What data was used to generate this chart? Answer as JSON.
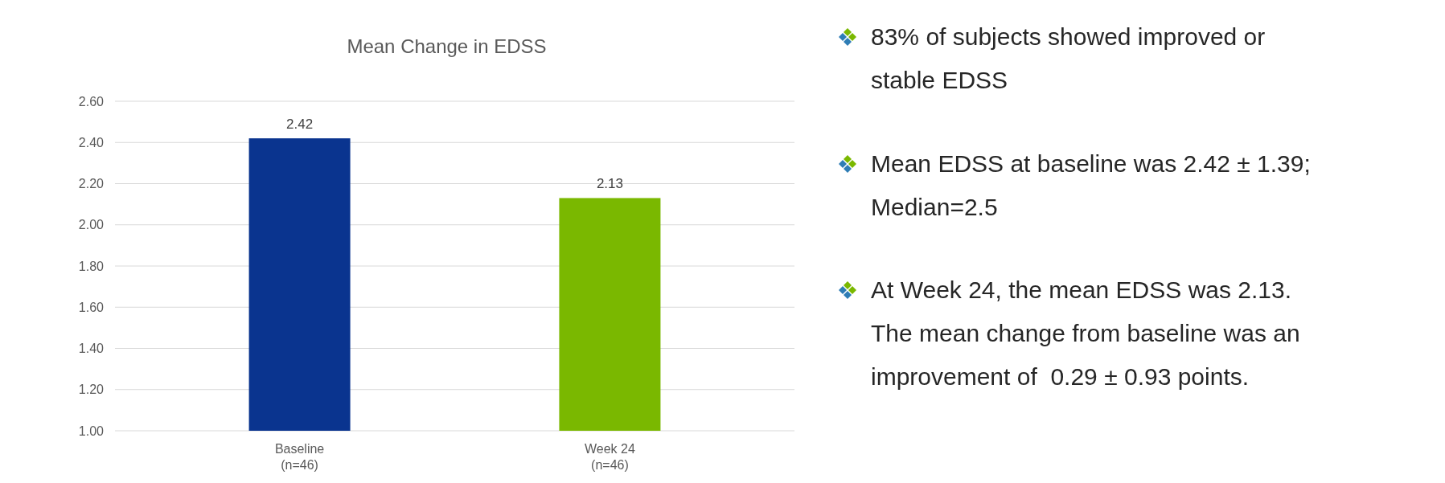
{
  "chart_data": {
    "type": "bar",
    "title": "Mean Change in EDSS",
    "categories": [
      "Baseline\n(n=46)",
      "Week 24\n(n=46)"
    ],
    "values": [
      2.42,
      2.13
    ],
    "colors": [
      "#0a348f",
      "#7ab800"
    ],
    "ylim": [
      1,
      2.6
    ],
    "yticks": [
      {
        "value": 1,
        "label": "1.00"
      },
      {
        "value": 1.2,
        "label": "1.20"
      },
      {
        "value": 1.4,
        "label": "1.40"
      },
      {
        "value": 1.6,
        "label": "1.60"
      },
      {
        "value": 1.8,
        "label": "1.80"
      },
      {
        "value": 2,
        "label": "2.00"
      },
      {
        "value": 2.2,
        "label": "2.20"
      },
      {
        "value": 2.4,
        "label": "2.40"
      },
      {
        "value": 2.6,
        "label": "2.60"
      }
    ],
    "grid": "y",
    "data_labels": true,
    "annotations": [
      "83% of subjects showed improved or stable EDSS",
      "Mean EDSS at baseline was 2.42 ± 1.39; Median=2.5",
      "At Week 24, the mean EDSS was 2.13. The mean change from baseline was an improvement of  0.29 ± 0.93 points."
    ]
  }
}
